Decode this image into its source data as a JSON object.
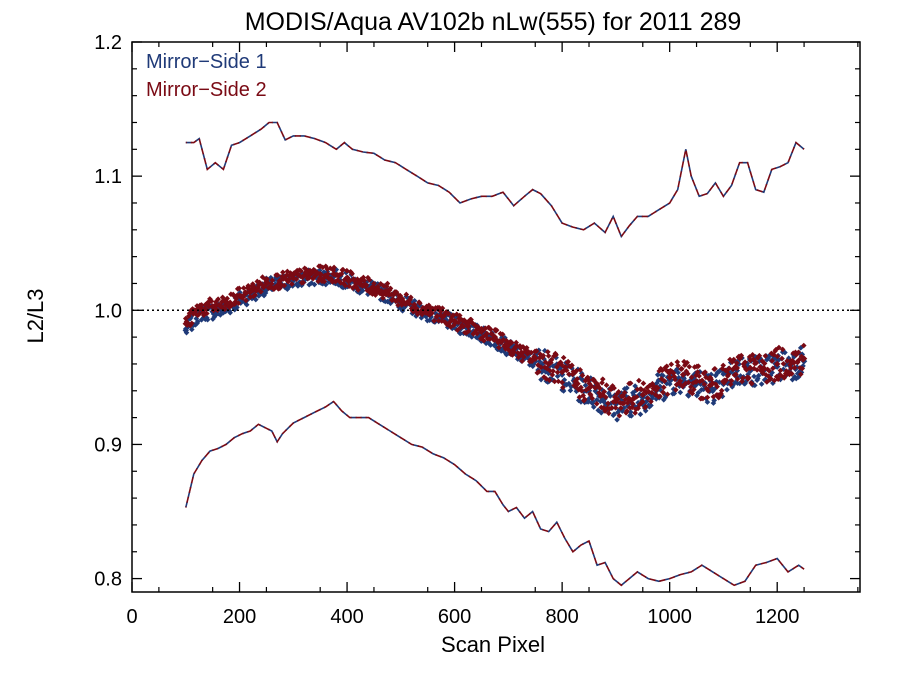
{
  "chart_data": {
    "type": "scatter",
    "title": "MODIS/Aqua AV102b nLw(555) for 2011 289",
    "xlabel": "Scan Pixel",
    "ylabel": "L2/L3",
    "xlim": [
      0,
      1354
    ],
    "ylim": [
      0.79,
      1.2
    ],
    "x_ticks": [
      0,
      200,
      400,
      600,
      800,
      1000,
      1200
    ],
    "x_tick_labels": [
      "0",
      "200",
      "400",
      "600",
      "800",
      "1000",
      "1200"
    ],
    "y_ticks": [
      0.8,
      0.9,
      1.0,
      1.1,
      1.2
    ],
    "y_tick_labels": [
      "0.8",
      "0.9",
      "1.0",
      "1.1",
      "1.2"
    ],
    "reference_line": 1.0,
    "legend_position": "top-left",
    "grid": false,
    "series": [
      {
        "name": "Mirror−Side 1",
        "color": "#1f3a78",
        "x": [
          100,
          125,
          150,
          175,
          200,
          225,
          250,
          275,
          300,
          325,
          350,
          375,
          400,
          425,
          450,
          475,
          500,
          525,
          550,
          575,
          600,
          625,
          650,
          675,
          700,
          725,
          750,
          775,
          800,
          825,
          850,
          875,
          900,
          925,
          950,
          975,
          1000,
          1025,
          1050,
          1075,
          1100,
          1125,
          1150,
          1175,
          1200,
          1225,
          1250
        ],
        "values": [
          0.985,
          0.998,
          0.999,
          1.001,
          1.008,
          1.012,
          1.018,
          1.02,
          1.022,
          1.024,
          1.025,
          1.025,
          1.022,
          1.018,
          1.015,
          1.012,
          1.006,
          1.002,
          0.998,
          0.994,
          0.99,
          0.986,
          0.982,
          0.978,
          0.972,
          0.966,
          0.962,
          0.958,
          0.952,
          0.945,
          0.94,
          0.935,
          0.93,
          0.932,
          0.935,
          0.94,
          0.948,
          0.95,
          0.945,
          0.942,
          0.945,
          0.955,
          0.955,
          0.955,
          0.958,
          0.96,
          0.962
        ]
      },
      {
        "name": "Mirror−Side 2",
        "color": "#7a0a14",
        "x": [
          100,
          125,
          150,
          175,
          200,
          225,
          250,
          275,
          300,
          325,
          350,
          375,
          400,
          425,
          450,
          475,
          500,
          525,
          550,
          575,
          600,
          625,
          650,
          675,
          700,
          725,
          750,
          775,
          800,
          825,
          850,
          875,
          900,
          925,
          950,
          975,
          1000,
          1025,
          1050,
          1075,
          1100,
          1125,
          1150,
          1175,
          1200,
          1225,
          1250
        ],
        "values": [
          0.99,
          1.001,
          1.003,
          1.004,
          1.011,
          1.015,
          1.021,
          1.022,
          1.024,
          1.026,
          1.027,
          1.027,
          1.024,
          1.02,
          1.017,
          1.014,
          1.008,
          1.004,
          1.0,
          0.996,
          0.992,
          0.988,
          0.984,
          0.98,
          0.974,
          0.968,
          0.964,
          0.96,
          0.954,
          0.947,
          0.942,
          0.937,
          0.932,
          0.934,
          0.937,
          0.942,
          0.95,
          0.952,
          0.947,
          0.944,
          0.947,
          0.957,
          0.957,
          0.957,
          0.96,
          0.962,
          0.964
        ]
      }
    ],
    "upper_bounds": {
      "x": [
        100,
        115,
        125,
        140,
        155,
        170,
        185,
        200,
        220,
        240,
        255,
        270,
        285,
        300,
        320,
        340,
        360,
        380,
        395,
        410,
        430,
        450,
        470,
        490,
        510,
        530,
        550,
        570,
        590,
        610,
        630,
        650,
        670,
        690,
        710,
        730,
        745,
        760,
        780,
        800,
        820,
        840,
        860,
        880,
        895,
        910,
        925,
        940,
        960,
        980,
        1000,
        1015,
        1030,
        1040,
        1055,
        1070,
        1085,
        1100,
        1115,
        1130,
        1145,
        1160,
        1175,
        1190,
        1205,
        1220,
        1235,
        1250
      ],
      "values": [
        1.125,
        1.125,
        1.128,
        1.105,
        1.11,
        1.105,
        1.123,
        1.125,
        1.13,
        1.135,
        1.14,
        1.14,
        1.127,
        1.13,
        1.13,
        1.128,
        1.125,
        1.12,
        1.125,
        1.12,
        1.118,
        1.117,
        1.112,
        1.11,
        1.105,
        1.1,
        1.095,
        1.093,
        1.088,
        1.08,
        1.083,
        1.085,
        1.085,
        1.088,
        1.078,
        1.085,
        1.09,
        1.087,
        1.078,
        1.065,
        1.062,
        1.06,
        1.065,
        1.058,
        1.07,
        1.055,
        1.063,
        1.07,
        1.07,
        1.075,
        1.08,
        1.09,
        1.12,
        1.1,
        1.085,
        1.087,
        1.095,
        1.085,
        1.093,
        1.11,
        1.11,
        1.09,
        1.088,
        1.105,
        1.107,
        1.11,
        1.125,
        1.12
      ]
    },
    "lower_bounds": {
      "x": [
        100,
        115,
        130,
        145,
        160,
        175,
        190,
        205,
        220,
        235,
        250,
        260,
        270,
        280,
        290,
        300,
        320,
        340,
        360,
        375,
        390,
        405,
        420,
        440,
        460,
        480,
        500,
        520,
        540,
        560,
        580,
        600,
        620,
        640,
        660,
        675,
        690,
        700,
        715,
        730,
        745,
        760,
        775,
        790,
        805,
        820,
        835,
        850,
        865,
        880,
        895,
        910,
        925,
        940,
        960,
        980,
        1000,
        1020,
        1040,
        1060,
        1080,
        1100,
        1120,
        1140,
        1160,
        1180,
        1200,
        1220,
        1240,
        1250
      ],
      "values": [
        0.853,
        0.878,
        0.888,
        0.895,
        0.897,
        0.9,
        0.905,
        0.908,
        0.91,
        0.915,
        0.912,
        0.91,
        0.902,
        0.908,
        0.912,
        0.916,
        0.92,
        0.924,
        0.928,
        0.932,
        0.925,
        0.92,
        0.92,
        0.92,
        0.915,
        0.91,
        0.905,
        0.9,
        0.898,
        0.893,
        0.89,
        0.885,
        0.878,
        0.873,
        0.865,
        0.865,
        0.855,
        0.85,
        0.853,
        0.845,
        0.85,
        0.837,
        0.835,
        0.842,
        0.83,
        0.82,
        0.825,
        0.828,
        0.81,
        0.812,
        0.8,
        0.795,
        0.8,
        0.805,
        0.8,
        0.798,
        0.8,
        0.803,
        0.805,
        0.81,
        0.805,
        0.8,
        0.795,
        0.798,
        0.81,
        0.812,
        0.815,
        0.805,
        0.81,
        0.807
      ]
    }
  }
}
